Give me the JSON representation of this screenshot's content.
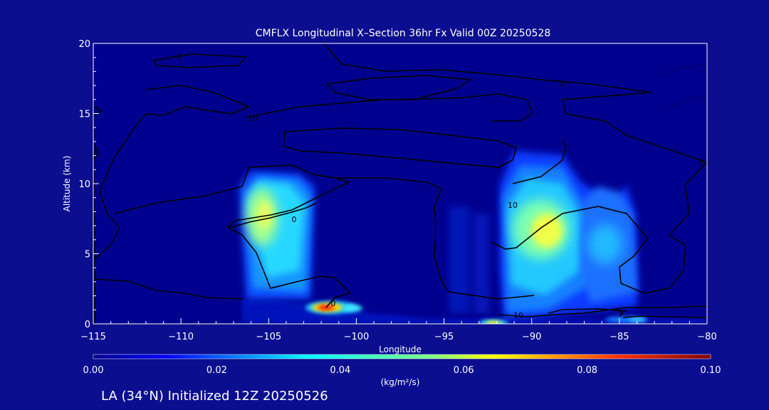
{
  "chart_data": {
    "type": "contour",
    "title": "CMFLX Longitudinal X–Section 36hr  Fx Valid 00Z 20250528",
    "xlabel": "Longitude",
    "ylabel": "Altitude (km)",
    "xlim": [
      -115,
      -80
    ],
    "ylim": [
      0,
      20
    ],
    "x_ticks": [
      -115,
      -110,
      -105,
      -100,
      -95,
      -90,
      -85,
      -80
    ],
    "x_tick_labels": [
      "−115",
      "−110",
      "−105",
      "−100",
      "−95",
      "−90",
      "−85",
      "−80"
    ],
    "y_ticks": [
      0,
      5,
      10,
      15,
      20
    ],
    "y_tick_labels": [
      "0",
      "5",
      "10",
      "15",
      "20"
    ],
    "colorbar": {
      "label": "(kg/m²/s)",
      "min": 0.0,
      "max": 0.1,
      "ticks": [
        0.0,
        0.02,
        0.04,
        0.06,
        0.08,
        0.1
      ],
      "tick_labels": [
        "0.00",
        "0.02",
        "0.04",
        "0.06",
        "0.08",
        "0.10"
      ],
      "colormap": "jet"
    },
    "filled_features": [
      {
        "name": "column-west",
        "lon_range": [
          -106.8,
          -102.8
        ],
        "alt_range": [
          1.8,
          10.2
        ],
        "peak_lon": -105.2,
        "peak_alt": 7.8,
        "peak_value": 0.045
      },
      {
        "name": "column-east",
        "lon_range": [
          -92.0,
          -86.0
        ],
        "alt_range": [
          0.5,
          12.0
        ],
        "peak_lon": -89.0,
        "peak_alt": 6.8,
        "peak_value": 0.06
      },
      {
        "name": "column-far-east",
        "lon_range": [
          -86.5,
          -83.5
        ],
        "alt_range": [
          2.0,
          9.5
        ],
        "peak_lon": -85.5,
        "peak_alt": 5.7,
        "peak_value": 0.025
      },
      {
        "name": "low-level-max",
        "lon": -101.8,
        "alt": 1.1,
        "peak_value": 0.09
      },
      {
        "name": "low-level-secondary",
        "lon": -92.3,
        "alt": 0.1,
        "peak_value": 0.055
      },
      {
        "name": "low-level-east",
        "lon": -84.5,
        "alt": 0.3,
        "peak_value": 0.02
      }
    ],
    "contour_labels": [
      "0",
      "0",
      "10",
      "10",
      "0",
      "0",
      "10",
      "0",
      "0"
    ]
  },
  "footer": {
    "station": "LA (34°N) Initialized 12Z 20250526"
  }
}
